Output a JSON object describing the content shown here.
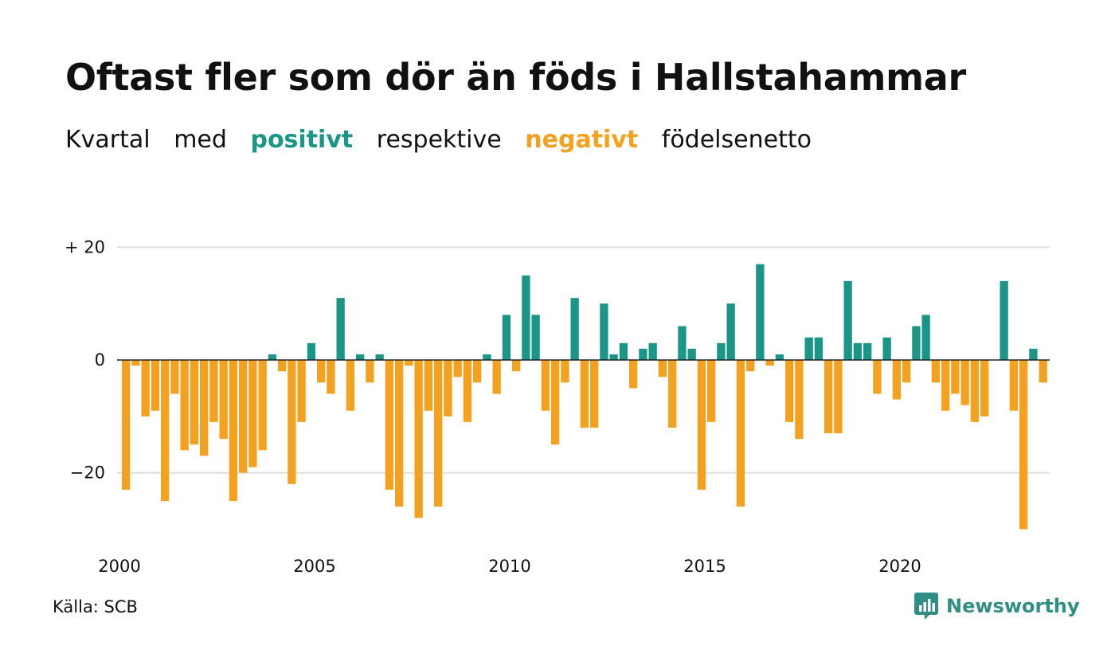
{
  "title": "Oftast fler som dör än föds i Hallstahammar",
  "subtitle": {
    "w1": "Kvartal",
    "w2": "med",
    "positive": "positivt",
    "w3": "respektive",
    "negative": "negativt",
    "w4": "födelsenetto"
  },
  "source": "Källa: SCB",
  "brand": "Newsworthy",
  "colors": {
    "positive": "#1a9688",
    "negative": "#f4a11f",
    "brand": "#2f8f84",
    "grid": "#dddddd"
  },
  "chart_data": {
    "type": "bar",
    "x_start_year": 2000,
    "periods_per_year": 4,
    "x_ticks": [
      "2000",
      "2005",
      "2010",
      "2015",
      "2020"
    ],
    "y_ticks": [
      {
        "value": 20,
        "label": "+ 20"
      },
      {
        "value": 0,
        "label": "0"
      },
      {
        "value": -20,
        "label": "−20"
      }
    ],
    "ylim": [
      -32,
      24
    ],
    "values": [
      -23,
      -1,
      -10,
      -9,
      -25,
      -6,
      -16,
      -15,
      -17,
      -11,
      -14,
      -25,
      -20,
      -19,
      -16,
      1,
      -2,
      -22,
      -11,
      3,
      -4,
      -6,
      11,
      -9,
      1,
      -4,
      1,
      -23,
      -26,
      -1,
      -28,
      -9,
      -26,
      -10,
      -3,
      -11,
      -4,
      1,
      -6,
      8,
      -2,
      15,
      8,
      -9,
      -15,
      -4,
      11,
      -12,
      -12,
      10,
      1,
      3,
      -5,
      2,
      3,
      -3,
      -12,
      6,
      2,
      -23,
      -11,
      3,
      10,
      -26,
      -2,
      17,
      -1,
      1,
      -11,
      -14,
      4,
      4,
      -13,
      -13,
      14,
      3,
      3,
      -6,
      4,
      -7,
      -4,
      6,
      8,
      -4,
      -9,
      -6,
      -8,
      -11,
      -10,
      0,
      14,
      -9,
      -30,
      2,
      -4
    ]
  }
}
